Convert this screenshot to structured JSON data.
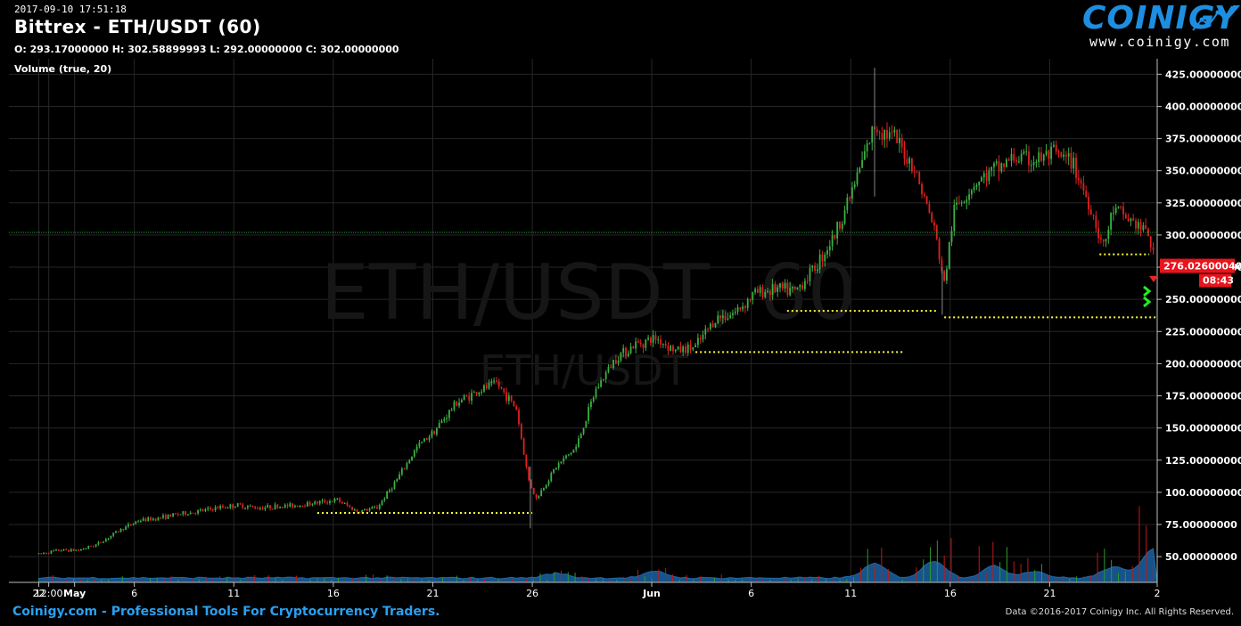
{
  "header": {
    "timestamp": "2017-09-10 17:51:18",
    "title": "Bittrex - ETH/USDT (60)",
    "ohlc": "O: 293.17000000 H: 302.58899993 L: 292.00000000 C: 302.00000000",
    "indicator": "Volume (true, 20)"
  },
  "logo": {
    "name": "COINIGY",
    "url": "www.coinigy.com"
  },
  "watermark": {
    "large": "ETH/USDT, 60",
    "small": "ETH/USDT"
  },
  "footer": {
    "left": "Coinigy.com - Professional Tools For Cryptocurrency Traders.",
    "right": "Data ©2016-2017 Coinigy Inc. All Rights Reserved."
  },
  "price_tag": {
    "price": "276.02600040",
    "countdown": "08:43"
  },
  "colors": {
    "up": "#3cb043",
    "down": "#e02020",
    "volume_area": "#1e6fb8",
    "dotted_lines": "#ffff33",
    "price_tag": "#e8141c"
  },
  "chart_data": {
    "type": "candlestick",
    "y_axis": {
      "ticks": [
        425,
        400,
        375,
        350,
        325,
        300,
        275,
        250,
        225,
        200,
        175,
        150,
        125,
        100,
        75,
        50
      ],
      "tick_labels": [
        "425.00000000",
        "400.00000000",
        "375.00000000",
        "350.00000000",
        "325.00000000",
        "300.00000000",
        "275.00000000",
        "250.00000000",
        "225.00000000",
        "200.00000000",
        "175.00000000",
        "150.00000000",
        "125.00000000",
        "100.00000000",
        "75.00000000",
        "50.00000000"
      ],
      "range": [
        30,
        437
      ]
    },
    "x_axis": {
      "tick_labels": [
        "22",
        "12:00",
        "May",
        "6",
        "11",
        "16",
        "21",
        "26",
        "Jun",
        "6",
        "11",
        "16",
        "21",
        "2"
      ],
      "tick_days": [
        0,
        0.5,
        1.8,
        4.8,
        9.8,
        14.8,
        19.8,
        24.8,
        30.8,
        35.8,
        40.8,
        45.8,
        50.8,
        56.2
      ],
      "range_days": [
        -1.5,
        56.2
      ]
    },
    "price_path": [
      [
        0,
        52
      ],
      [
        1,
        55
      ],
      [
        2,
        55
      ],
      [
        3,
        60
      ],
      [
        4,
        70
      ],
      [
        5,
        78
      ],
      [
        6,
        80
      ],
      [
        7,
        83
      ],
      [
        8,
        85
      ],
      [
        9,
        88
      ],
      [
        10,
        90
      ],
      [
        11,
        88
      ],
      [
        12,
        89
      ],
      [
        13,
        90
      ],
      [
        14,
        92
      ],
      [
        15,
        94
      ],
      [
        16,
        85
      ],
      [
        17,
        88
      ],
      [
        18,
        110
      ],
      [
        19,
        135
      ],
      [
        20,
        150
      ],
      [
        21,
        170
      ],
      [
        22,
        178
      ],
      [
        23,
        185
      ],
      [
        24,
        165
      ],
      [
        24.6,
        110
      ],
      [
        25,
        95
      ],
      [
        26,
        120
      ],
      [
        27,
        135
      ],
      [
        28,
        180
      ],
      [
        29,
        205
      ],
      [
        30,
        215
      ],
      [
        31,
        220
      ],
      [
        32,
        210
      ],
      [
        33,
        213
      ],
      [
        34,
        235
      ],
      [
        35,
        240
      ],
      [
        36,
        255
      ],
      [
        37,
        258
      ],
      [
        38,
        256
      ],
      [
        39,
        275
      ],
      [
        40,
        300
      ],
      [
        41,
        340
      ],
      [
        42,
        385
      ],
      [
        43,
        375
      ],
      [
        44,
        352
      ],
      [
        45,
        305
      ],
      [
        45.5,
        262
      ],
      [
        46,
        320
      ],
      [
        47,
        340
      ],
      [
        48,
        350
      ],
      [
        49,
        360
      ],
      [
        50,
        358
      ],
      [
        51,
        363
      ],
      [
        52,
        355
      ],
      [
        53,
        315
      ],
      [
        53.5,
        290
      ],
      [
        54,
        320
      ],
      [
        55,
        310
      ],
      [
        55.8,
        300
      ],
      [
        56.1,
        275
      ]
    ],
    "volume_spikes": [
      [
        26,
        15
      ],
      [
        31,
        20
      ],
      [
        42,
        45
      ],
      [
        45,
        55
      ],
      [
        48,
        38
      ],
      [
        50,
        22
      ],
      [
        54,
        35
      ],
      [
        56,
        95
      ]
    ],
    "support_lines": [
      {
        "price": 84,
        "from_day": 14,
        "to_day": 24.8
      },
      {
        "price": 209,
        "from_day": 33,
        "to_day": 43.5
      },
      {
        "price": 241,
        "from_day": 37.6,
        "to_day": 45.2
      },
      {
        "price": 236,
        "from_day": 45.5,
        "to_day": 56.2
      },
      {
        "price": 285,
        "from_day": 53.3,
        "to_day": 55.8
      }
    ],
    "last_price": 276.026,
    "reference_line": 302,
    "grid": true
  }
}
